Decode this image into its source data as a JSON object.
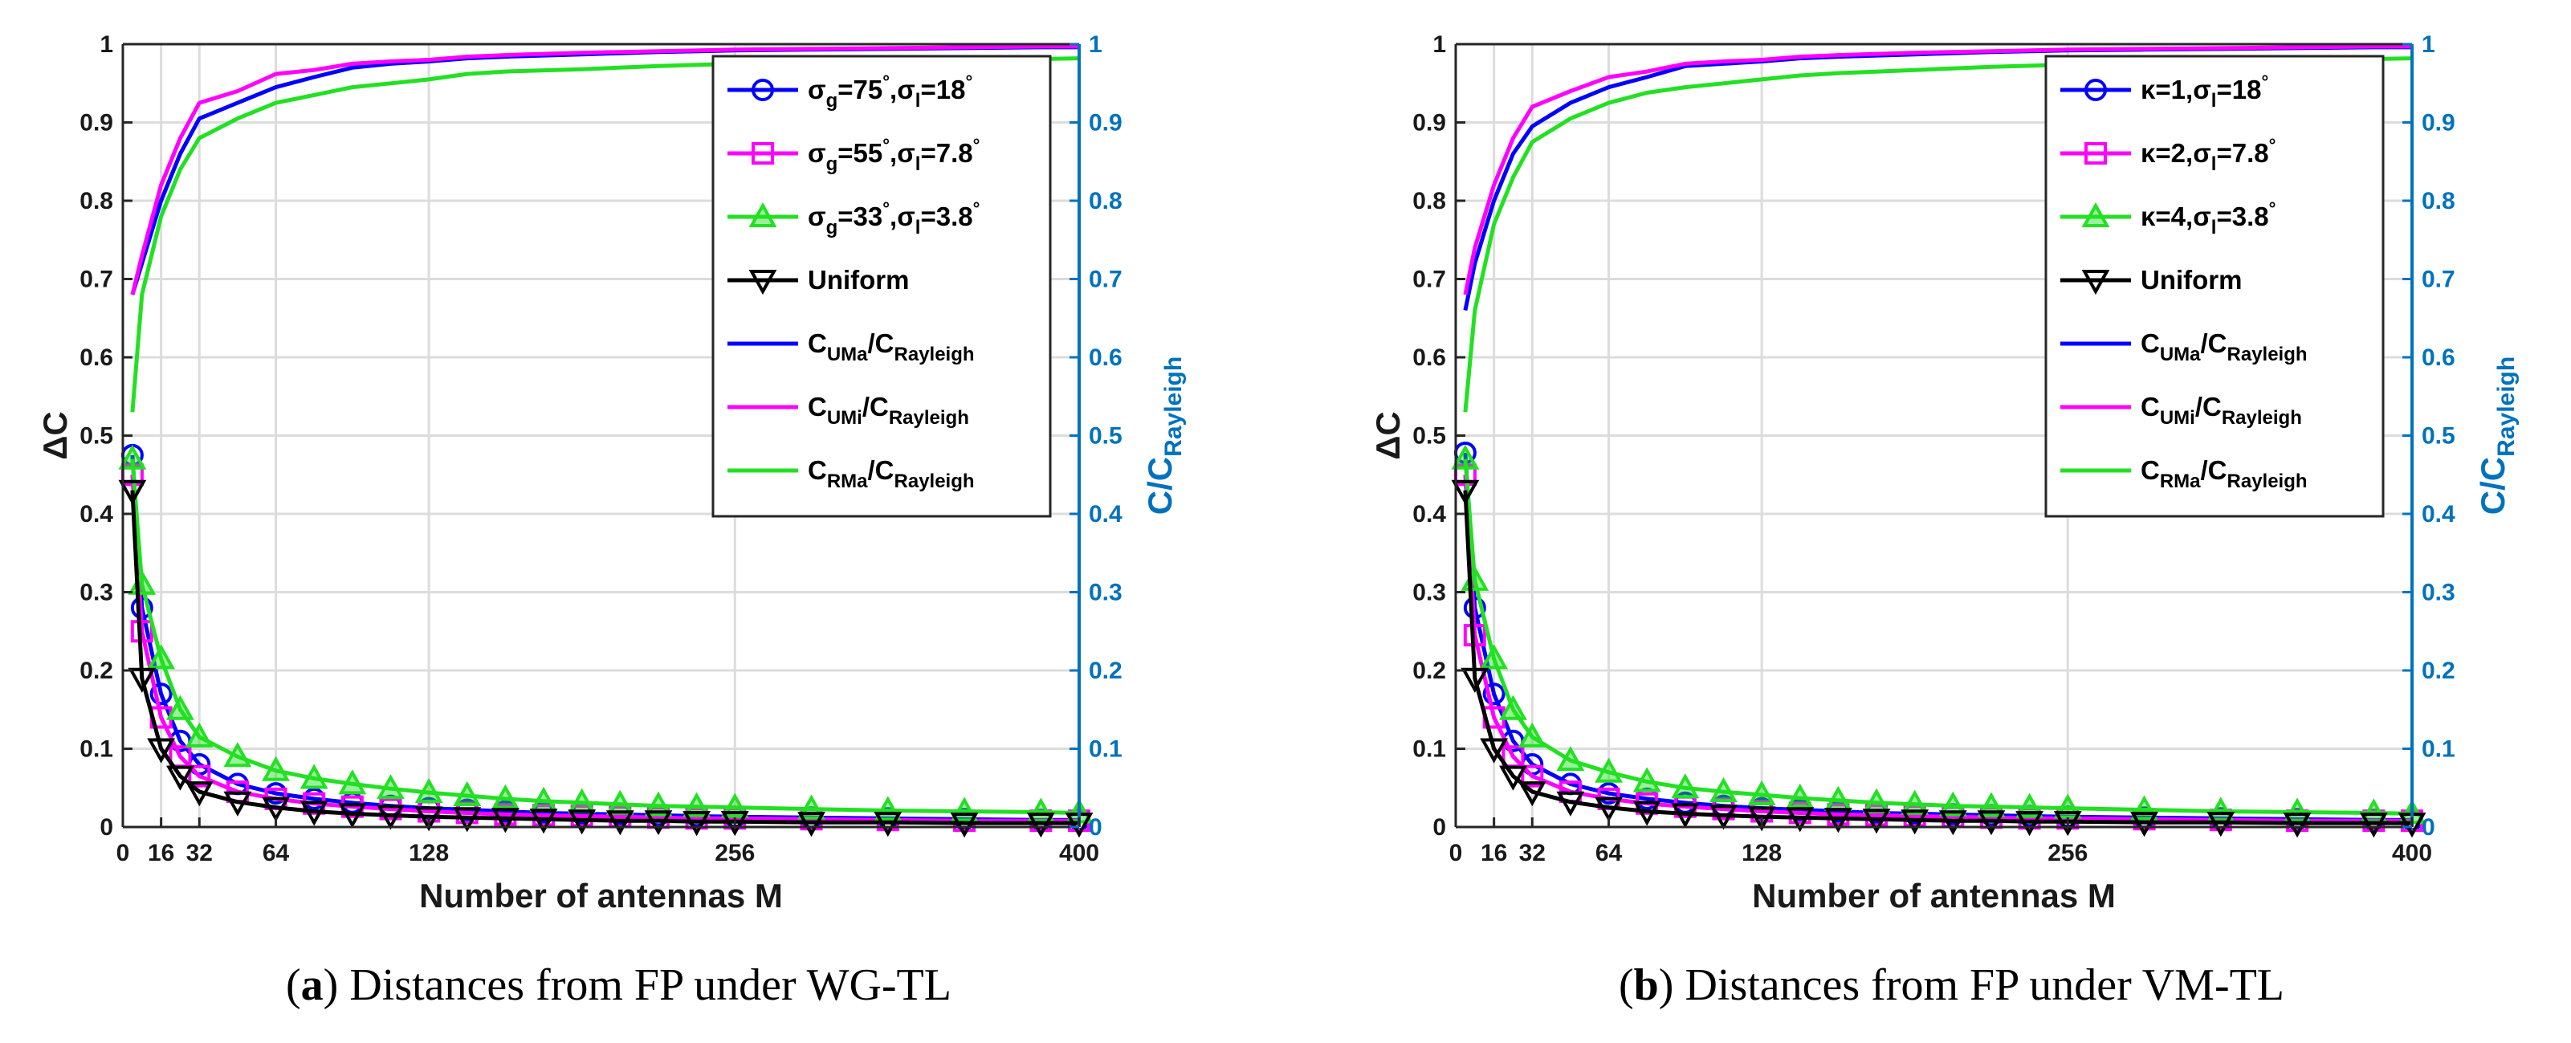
{
  "colors": {
    "blue": "#0000FF",
    "magenta": "#FF00FF",
    "green": "#22E022",
    "black": "#000000",
    "right_axis": "#0072BD",
    "grid": "#DCDCDC"
  },
  "chart_data": [
    {
      "type": "line",
      "panel_id": "a",
      "caption_letter": "a",
      "caption_text": "Distances from FP under WG-TL",
      "caption_paren_open": "(",
      "caption_paren_close": ")",
      "xlabel": "Number of antennas M",
      "ylabel": "ΔC",
      "ylabel_right_main": "C/C",
      "ylabel_right_sub": "Rayleigh",
      "xlim": [
        0,
        400
      ],
      "ylim": [
        0,
        1
      ],
      "ylim_right": [
        0,
        1
      ],
      "x_ticks": [
        0,
        16,
        32,
        64,
        128,
        256,
        400
      ],
      "x_tick_labels": [
        "0",
        "16",
        "32",
        "64",
        "128",
        "256",
        "400"
      ],
      "y_ticks": [
        0,
        0.1,
        0.2,
        0.3,
        0.4,
        0.5,
        0.6,
        0.7,
        0.8,
        0.9,
        1
      ],
      "y_tick_labels": [
        "0",
        "0.1",
        "0.2",
        "0.3",
        "0.4",
        "0.5",
        "0.6",
        "0.7",
        "0.8",
        "0.9",
        "1"
      ],
      "y_right_tick_labels": [
        "0",
        "0.1",
        "0.2",
        "0.3",
        "0.4",
        "0.5",
        "0.6",
        "0.7",
        "0.8",
        "0.9",
        "1"
      ],
      "grid": true,
      "legend_position": "top-right",
      "series": [
        {
          "name": "σg=75°,σl=18°",
          "legend": {
            "main1": "σ",
            "sub1": "g",
            "main2": "=75",
            "sup2": "°",
            "main3": ",σ",
            "sub3": "l",
            "main4": "=18",
            "sup4": "°"
          },
          "color": "blue",
          "marker": "circle",
          "axis": "left",
          "x": [
            4,
            8,
            16,
            24,
            32,
            48,
            64,
            80,
            96,
            112,
            128,
            144,
            160,
            176,
            192,
            208,
            224,
            240,
            256,
            288,
            320,
            352,
            384,
            400
          ],
          "y": [
            0.475,
            0.28,
            0.17,
            0.11,
            0.08,
            0.055,
            0.043,
            0.036,
            0.031,
            0.027,
            0.024,
            0.022,
            0.02,
            0.018,
            0.017,
            0.016,
            0.015,
            0.014,
            0.013,
            0.012,
            0.011,
            0.01,
            0.009,
            0.009
          ]
        },
        {
          "name": "σg=55°,σl=7.8°",
          "legend": {
            "main1": "σ",
            "sub1": "g",
            "main2": "=55",
            "sup2": "°",
            "main3": ",σ",
            "sub3": "l",
            "main4": "=7.8",
            "sup4": "°"
          },
          "color": "magenta",
          "marker": "square",
          "axis": "left",
          "x": [
            4,
            8,
            16,
            24,
            32,
            48,
            64,
            80,
            96,
            112,
            128,
            144,
            160,
            176,
            192,
            208,
            224,
            240,
            256,
            288,
            320,
            352,
            384,
            400
          ],
          "y": [
            0.45,
            0.25,
            0.14,
            0.09,
            0.065,
            0.045,
            0.036,
            0.03,
            0.026,
            0.023,
            0.02,
            0.018,
            0.016,
            0.015,
            0.014,
            0.013,
            0.012,
            0.011,
            0.011,
            0.01,
            0.009,
            0.008,
            0.008,
            0.008
          ]
        },
        {
          "name": "σg=33°,σl=3.8°",
          "legend": {
            "main1": "σ",
            "sub1": "g",
            "main2": "=33",
            "sup2": "°",
            "main3": ",σ",
            "sub3": "l",
            "main4": "=3.8",
            "sup4": "°"
          },
          "color": "green",
          "marker": "triangle",
          "axis": "left",
          "x": [
            4,
            8,
            16,
            24,
            32,
            48,
            64,
            80,
            96,
            112,
            128,
            144,
            160,
            176,
            192,
            208,
            224,
            240,
            256,
            288,
            320,
            352,
            384,
            400
          ],
          "y": [
            0.47,
            0.31,
            0.215,
            0.15,
            0.115,
            0.09,
            0.072,
            0.062,
            0.055,
            0.049,
            0.044,
            0.04,
            0.036,
            0.033,
            0.031,
            0.029,
            0.027,
            0.026,
            0.025,
            0.023,
            0.021,
            0.02,
            0.019,
            0.018
          ]
        },
        {
          "name": "Uniform",
          "legend": {
            "main1": "Uniform"
          },
          "color": "black",
          "marker": "triangle-down",
          "axis": "left",
          "x": [
            4,
            8,
            16,
            24,
            32,
            48,
            64,
            80,
            96,
            112,
            128,
            144,
            160,
            176,
            192,
            208,
            224,
            240,
            256,
            288,
            320,
            352,
            384,
            400
          ],
          "y": [
            0.43,
            0.19,
            0.1,
            0.065,
            0.045,
            0.032,
            0.025,
            0.02,
            0.017,
            0.015,
            0.013,
            0.012,
            0.011,
            0.01,
            0.009,
            0.008,
            0.008,
            0.007,
            0.007,
            0.006,
            0.006,
            0.005,
            0.005,
            0.005
          ]
        },
        {
          "name": "CUMa/CRayleigh",
          "legend": {
            "main1": "C",
            "sub1": "UMa",
            "main2": "/C",
            "sub2": "Rayleigh"
          },
          "color": "blue",
          "marker": "none",
          "axis": "right",
          "x": [
            4,
            8,
            16,
            24,
            32,
            48,
            64,
            80,
            96,
            112,
            128,
            144,
            160,
            192,
            224,
            256,
            288,
            320,
            352,
            384,
            400
          ],
          "y": [
            0.68,
            0.72,
            0.8,
            0.86,
            0.905,
            0.925,
            0.945,
            0.958,
            0.97,
            0.975,
            0.978,
            0.982,
            0.984,
            0.987,
            0.99,
            0.992,
            0.993,
            0.994,
            0.995,
            0.996,
            0.996
          ]
        },
        {
          "name": "CUMi/CRayleigh",
          "legend": {
            "main1": "C",
            "sub1": "UMi",
            "main2": "/C",
            "sub2": "Rayleigh"
          },
          "color": "magenta",
          "marker": "none",
          "axis": "right",
          "x": [
            4,
            8,
            16,
            24,
            32,
            48,
            64,
            80,
            96,
            112,
            128,
            144,
            160,
            192,
            224,
            256,
            288,
            320,
            352,
            384,
            400
          ],
          "y": [
            0.68,
            0.73,
            0.82,
            0.88,
            0.925,
            0.94,
            0.962,
            0.967,
            0.975,
            0.978,
            0.98,
            0.984,
            0.986,
            0.989,
            0.991,
            0.993,
            0.994,
            0.995,
            0.996,
            0.997,
            0.997
          ]
        },
        {
          "name": "CRMa/CRayleigh",
          "legend": {
            "main1": "C",
            "sub1": "RMa",
            "main2": "/C",
            "sub2": "Rayleigh"
          },
          "color": "green",
          "marker": "none",
          "axis": "right",
          "x": [
            4,
            8,
            16,
            24,
            32,
            48,
            64,
            80,
            96,
            112,
            128,
            144,
            160,
            192,
            224,
            256,
            288,
            320,
            352,
            384,
            400
          ],
          "y": [
            0.53,
            0.68,
            0.78,
            0.84,
            0.88,
            0.905,
            0.925,
            0.935,
            0.945,
            0.95,
            0.955,
            0.962,
            0.965,
            0.968,
            0.972,
            0.975,
            0.977,
            0.979,
            0.98,
            0.981,
            0.982
          ]
        }
      ]
    },
    {
      "type": "line",
      "panel_id": "b",
      "caption_letter": "b",
      "caption_text": "Distances from FP under VM-TL",
      "caption_paren_open": "(",
      "caption_paren_close": ")",
      "xlabel": "Number of antennas M",
      "ylabel": "ΔC",
      "ylabel_right_main": "C/C",
      "ylabel_right_sub": "Rayleigh",
      "xlim": [
        0,
        400
      ],
      "ylim": [
        0,
        1
      ],
      "ylim_right": [
        0,
        1
      ],
      "x_ticks": [
        0,
        16,
        32,
        64,
        128,
        256,
        400
      ],
      "x_tick_labels": [
        "0",
        "16",
        "32",
        "64",
        "128",
        "256",
        "400"
      ],
      "y_ticks": [
        0,
        0.1,
        0.2,
        0.3,
        0.4,
        0.5,
        0.6,
        0.7,
        0.8,
        0.9,
        1
      ],
      "y_tick_labels": [
        "0",
        "0.1",
        "0.2",
        "0.3",
        "0.4",
        "0.5",
        "0.6",
        "0.7",
        "0.8",
        "0.9",
        "1"
      ],
      "y_right_tick_labels": [
        "0",
        "0.1",
        "0.2",
        "0.3",
        "0.4",
        "0.5",
        "0.6",
        "0.7",
        "0.8",
        "0.9",
        "1"
      ],
      "grid": true,
      "legend_position": "top-right",
      "series": [
        {
          "name": "κ=1,σl=18°",
          "legend": {
            "main1": "κ=1,σ",
            "sub1": "l",
            "main2": "=18",
            "sup2": "°"
          },
          "color": "blue",
          "marker": "circle",
          "axis": "left",
          "x": [
            4,
            8,
            16,
            24,
            32,
            48,
            64,
            80,
            96,
            112,
            128,
            144,
            160,
            176,
            192,
            208,
            224,
            240,
            256,
            288,
            320,
            352,
            384,
            400
          ],
          "y": [
            0.478,
            0.28,
            0.17,
            0.11,
            0.08,
            0.055,
            0.043,
            0.036,
            0.031,
            0.027,
            0.024,
            0.022,
            0.02,
            0.018,
            0.017,
            0.016,
            0.015,
            0.014,
            0.013,
            0.012,
            0.011,
            0.01,
            0.009,
            0.009
          ]
        },
        {
          "name": "κ=2,σl=7.8°",
          "legend": {
            "main1": "κ=2,σ",
            "sub1": "l",
            "main2": "=7.8",
            "sup2": "°"
          },
          "color": "magenta",
          "marker": "square",
          "axis": "left",
          "x": [
            4,
            8,
            16,
            24,
            32,
            48,
            64,
            80,
            96,
            112,
            128,
            144,
            160,
            176,
            192,
            208,
            224,
            240,
            256,
            288,
            320,
            352,
            384,
            400
          ],
          "y": [
            0.45,
            0.245,
            0.14,
            0.09,
            0.065,
            0.045,
            0.036,
            0.03,
            0.026,
            0.023,
            0.02,
            0.018,
            0.016,
            0.015,
            0.014,
            0.013,
            0.012,
            0.011,
            0.011,
            0.01,
            0.009,
            0.008,
            0.008,
            0.008
          ]
        },
        {
          "name": "κ=4,σl=3.8°",
          "legend": {
            "main1": "κ=4,σ",
            "sub1": "l",
            "main2": "=3.8",
            "sup2": "°"
          },
          "color": "green",
          "marker": "triangle",
          "axis": "left",
          "x": [
            4,
            8,
            16,
            24,
            32,
            48,
            64,
            80,
            96,
            112,
            128,
            144,
            160,
            176,
            192,
            208,
            224,
            240,
            256,
            288,
            320,
            352,
            384,
            400
          ],
          "y": [
            0.47,
            0.315,
            0.215,
            0.15,
            0.115,
            0.085,
            0.07,
            0.058,
            0.05,
            0.045,
            0.041,
            0.037,
            0.034,
            0.031,
            0.029,
            0.027,
            0.026,
            0.025,
            0.024,
            0.022,
            0.02,
            0.019,
            0.018,
            0.017
          ]
        },
        {
          "name": "Uniform",
          "legend": {
            "main1": "Uniform"
          },
          "color": "black",
          "marker": "triangle-down",
          "axis": "left",
          "x": [
            4,
            8,
            16,
            24,
            32,
            48,
            64,
            80,
            96,
            112,
            128,
            144,
            160,
            176,
            192,
            208,
            224,
            240,
            256,
            288,
            320,
            352,
            384,
            400
          ],
          "y": [
            0.43,
            0.19,
            0.1,
            0.065,
            0.045,
            0.032,
            0.025,
            0.02,
            0.017,
            0.015,
            0.013,
            0.012,
            0.011,
            0.01,
            0.009,
            0.008,
            0.008,
            0.007,
            0.007,
            0.006,
            0.006,
            0.005,
            0.005,
            0.005
          ]
        },
        {
          "name": "CUMa/CRayleigh",
          "legend": {
            "main1": "C",
            "sub1": "UMa",
            "main2": "/C",
            "sub2": "Rayleigh"
          },
          "color": "blue",
          "marker": "none",
          "axis": "right",
          "x": [
            4,
            8,
            16,
            24,
            32,
            48,
            64,
            80,
            96,
            112,
            128,
            144,
            160,
            192,
            224,
            256,
            288,
            320,
            352,
            384,
            400
          ],
          "y": [
            0.66,
            0.72,
            0.8,
            0.86,
            0.895,
            0.925,
            0.945,
            0.958,
            0.972,
            0.975,
            0.978,
            0.982,
            0.984,
            0.987,
            0.99,
            0.992,
            0.993,
            0.994,
            0.995,
            0.996,
            0.996
          ]
        },
        {
          "name": "CUMi/CRayleigh",
          "legend": {
            "main1": "C",
            "sub1": "UMi",
            "main2": "/C",
            "sub2": "Rayleigh"
          },
          "color": "magenta",
          "marker": "none",
          "axis": "right",
          "x": [
            4,
            8,
            16,
            24,
            32,
            48,
            64,
            80,
            96,
            112,
            128,
            144,
            160,
            192,
            224,
            256,
            288,
            320,
            352,
            384,
            400
          ],
          "y": [
            0.68,
            0.74,
            0.82,
            0.88,
            0.92,
            0.94,
            0.958,
            0.965,
            0.975,
            0.978,
            0.98,
            0.984,
            0.986,
            0.989,
            0.991,
            0.993,
            0.994,
            0.995,
            0.996,
            0.997,
            0.997
          ]
        },
        {
          "name": "CRMa/CRayleigh",
          "legend": {
            "main1": "C",
            "sub1": "RMa",
            "main2": "/C",
            "sub2": "Rayleigh"
          },
          "color": "green",
          "marker": "none",
          "axis": "right",
          "x": [
            4,
            8,
            16,
            24,
            32,
            48,
            64,
            80,
            96,
            112,
            128,
            144,
            160,
            192,
            224,
            256,
            288,
            320,
            352,
            384,
            400
          ],
          "y": [
            0.53,
            0.66,
            0.77,
            0.83,
            0.875,
            0.905,
            0.925,
            0.938,
            0.945,
            0.95,
            0.955,
            0.96,
            0.963,
            0.967,
            0.971,
            0.974,
            0.976,
            0.978,
            0.98,
            0.981,
            0.982
          ]
        }
      ]
    }
  ]
}
